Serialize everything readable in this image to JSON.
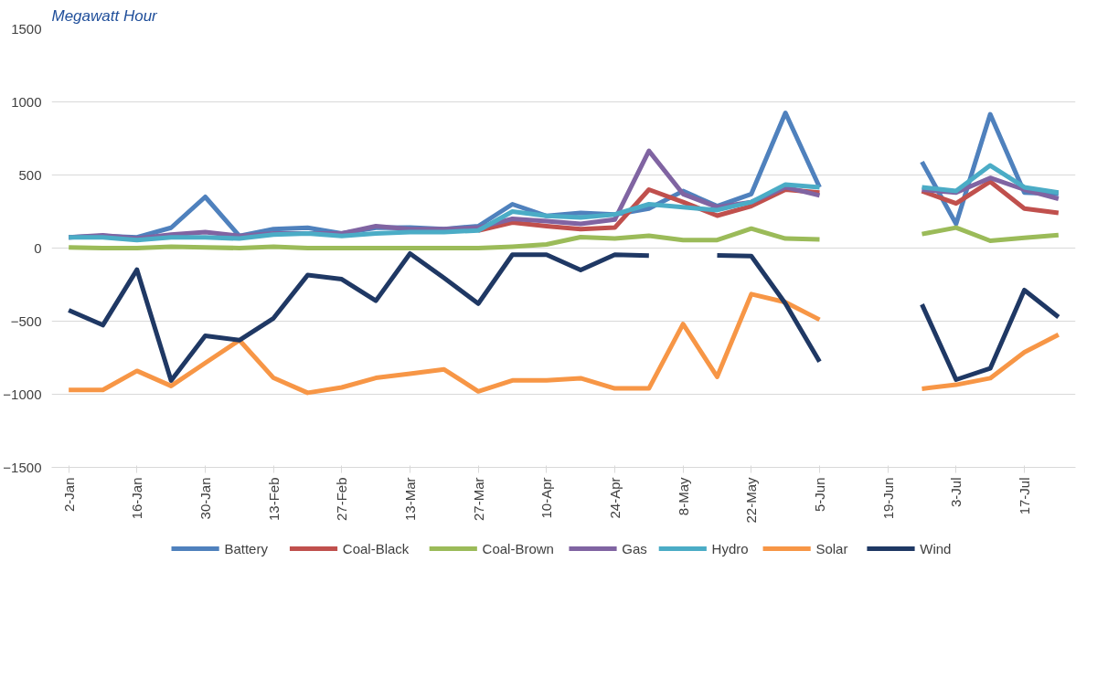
{
  "chart_data": {
    "type": "line",
    "title": "Megawatt Hour",
    "categories": [
      "2-Jan",
      null,
      "16-Jan",
      null,
      "30-Jan",
      null,
      "13-Feb",
      null,
      "27-Feb",
      null,
      "13-Mar",
      null,
      "27-Mar",
      null,
      "10-Apr",
      null,
      "24-Apr",
      null,
      "8-May",
      null,
      "22-May",
      null,
      "5-Jun",
      null,
      "19-Jun",
      null,
      "3-Jul",
      null,
      "17-Jul",
      null
    ],
    "ylim": [
      -1500,
      1500
    ],
    "yticks": [
      -1500,
      -1000,
      -500,
      0,
      500,
      1000,
      1500
    ],
    "grid": "y",
    "legend": "bottom",
    "line_style": "solid",
    "marker": "none",
    "series": [
      {
        "name": "Battery",
        "color": "#4f81bd",
        "values": [
          74,
          83,
          74,
          139,
          350,
          83,
          130,
          139,
          100,
          139,
          140,
          130,
          150,
          300,
          220,
          240,
          230,
          270,
          390,
          287,
          370,
          925,
          416,
          null,
          null,
          590,
          165,
          915,
          380,
          370
        ]
      },
      {
        "name": "Coal-Black",
        "color": "#c0504d",
        "values": [
          null,
          null,
          null,
          null,
          null,
          null,
          null,
          null,
          null,
          null,
          null,
          null,
          120,
          175,
          150,
          130,
          140,
          400,
          315,
          222,
          287,
          400,
          380,
          null,
          null,
          390,
          305,
          455,
          270,
          240
        ]
      },
      {
        "name": "Coal-Brown",
        "color": "#9bbb59",
        "values": [
          5,
          0,
          0,
          10,
          5,
          0,
          10,
          0,
          0,
          0,
          0,
          0,
          0,
          10,
          25,
          75,
          65,
          85,
          55,
          55,
          133,
          65,
          60,
          null,
          null,
          96,
          140,
          50,
          70,
          89
        ]
      },
      {
        "name": "Gas",
        "color": "#8064a2",
        "values": [
          74,
          87,
          65,
          92,
          110,
          83,
          100,
          100,
          100,
          150,
          130,
          130,
          140,
          200,
          185,
          165,
          195,
          665,
          370,
          280,
          315,
          416,
          360,
          null,
          null,
          400,
          380,
          480,
          400,
          337
        ]
      },
      {
        "name": "Hydro",
        "color": "#4bacc6",
        "values": [
          74,
          74,
          55,
          74,
          74,
          65,
          92,
          100,
          83,
          100,
          110,
          110,
          120,
          250,
          220,
          210,
          230,
          300,
          280,
          260,
          315,
          435,
          416,
          null,
          null,
          416,
          390,
          565,
          416,
          380
        ]
      },
      {
        "name": "Solar",
        "color": "#f79646",
        "values": [
          -970,
          -970,
          -840,
          -943,
          -786,
          -630,
          -888,
          -990,
          -953,
          -888,
          -860,
          -830,
          -980,
          -905,
          -905,
          -890,
          -960,
          -960,
          -520,
          -880,
          -315,
          -370,
          -490,
          null,
          null,
          -962,
          -935,
          -890,
          -712,
          -592
        ]
      },
      {
        "name": "Wind",
        "color": "#1f3864",
        "values": [
          -425,
          -527,
          -148,
          -906,
          -600,
          -630,
          -480,
          -185,
          -213,
          -360,
          -37,
          -205,
          -380,
          -45,
          -45,
          -150,
          -45,
          -52,
          null,
          -50,
          -55,
          -380,
          -777,
          null,
          null,
          -385,
          -900,
          -823,
          -287,
          -472
        ]
      }
    ]
  }
}
